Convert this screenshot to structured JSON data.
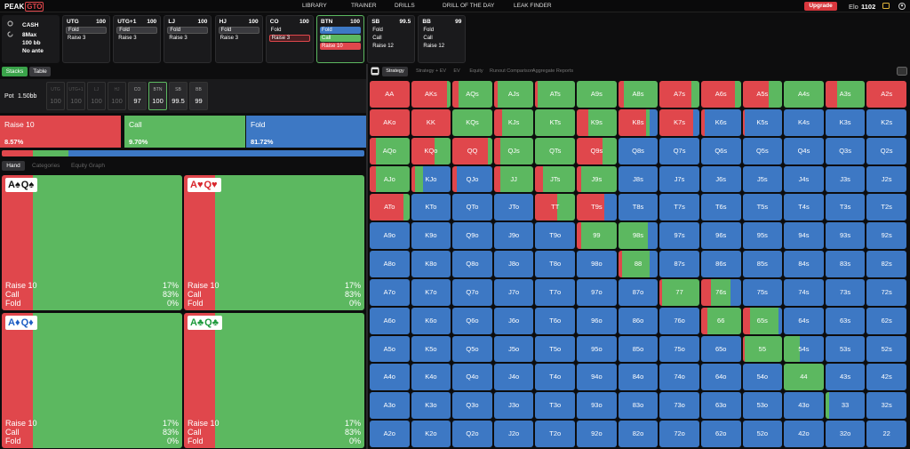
{
  "nav": {
    "logo": [
      "PEAK",
      "GTO"
    ],
    "items": [
      "LIBRARY",
      "TRAINER",
      "DRILLS",
      "DRILL OF THE DAY",
      "LEAK FINDER"
    ],
    "upgrade": "Upgrade",
    "elo_label": "Elo",
    "elo": 1102
  },
  "settings": [
    "CASH",
    "8Max",
    "100 bb",
    "No ante"
  ],
  "positions": [
    {
      "name": "UTG",
      "stack": 100,
      "actions": [
        "Fold",
        "Raise 3"
      ],
      "selected": 0
    },
    {
      "name": "UTG+1",
      "stack": 100,
      "actions": [
        "Fold",
        "Raise 3"
      ],
      "selected": 0
    },
    {
      "name": "LJ",
      "stack": 100,
      "actions": [
        "Fold",
        "Raise 3"
      ],
      "selected": 0
    },
    {
      "name": "HJ",
      "stack": 100,
      "actions": [
        "Fold",
        "Raise 3"
      ],
      "selected": 0
    },
    {
      "name": "CO",
      "stack": 100,
      "actions": [
        "Fold",
        "Raise 3"
      ],
      "selected": 1
    },
    {
      "name": "BTN",
      "stack": 100,
      "actions": [
        "Fold",
        "Call",
        "Raise 10"
      ],
      "chip_colors": [
        "#3d78c4",
        "#5cb860",
        "#e0474c"
      ]
    },
    {
      "name": "SB",
      "stack": 99.5,
      "actions": [
        "Fold",
        "Call",
        "Raise 12"
      ]
    },
    {
      "name": "BB",
      "stack": 99,
      "actions": [
        "Fold",
        "Call",
        "Raise 12"
      ]
    }
  ],
  "view_tabs": {
    "items": [
      "Stacks",
      "Table"
    ],
    "active": 0
  },
  "pot": {
    "label": "Pot",
    "value": "1.50bb"
  },
  "seats": [
    {
      "name": "UTG",
      "stack": 100,
      "folded": true
    },
    {
      "name": "UTG+1",
      "stack": 100,
      "folded": true
    },
    {
      "name": "LJ",
      "stack": 100,
      "folded": true
    },
    {
      "name": "HJ",
      "stack": 100,
      "folded": true
    },
    {
      "name": "CO",
      "stack": 97
    },
    {
      "name": "BTN",
      "stack": 100,
      "active": true
    },
    {
      "name": "SB",
      "stack": 99.5
    },
    {
      "name": "BB",
      "stack": 99
    }
  ],
  "actions": [
    {
      "name": "Raise 10",
      "freq": 8.57,
      "freq_label": "8.57%",
      "color": "#e0474c"
    },
    {
      "name": "Call",
      "freq": 9.7,
      "freq_label": "9.70%",
      "color": "#5cb860"
    },
    {
      "name": "Fold",
      "freq": 81.72,
      "freq_label": "81.72%",
      "color": "#3d78c4"
    }
  ],
  "detail_tabs": {
    "items": [
      "Hand",
      "Categories",
      "Equity Graph"
    ],
    "active": 0
  },
  "combos": [
    {
      "cards": [
        {
          "rank": "A",
          "suit": "♠",
          "color": "#111111"
        },
        {
          "rank": "Q",
          "suit": "♠",
          "color": "#111111"
        }
      ],
      "freqs": [
        17,
        83,
        0
      ],
      "labels": [
        "17%",
        "83%",
        "0%"
      ]
    },
    {
      "cards": [
        {
          "rank": "A",
          "suit": "♥",
          "color": "#d9262c"
        },
        {
          "rank": "Q",
          "suit": "♥",
          "color": "#d9262c"
        }
      ],
      "freqs": [
        17,
        83,
        0
      ],
      "labels": [
        "17%",
        "83%",
        "0%"
      ]
    },
    {
      "cards": [
        {
          "rank": "A",
          "suit": "♦",
          "color": "#1f5fc4"
        },
        {
          "rank": "Q",
          "suit": "♦",
          "color": "#1f5fc4"
        }
      ],
      "freqs": [
        17,
        83,
        0
      ],
      "labels": [
        "17%",
        "83%",
        "0%"
      ]
    },
    {
      "cards": [
        {
          "rank": "A",
          "suit": "♣",
          "color": "#1e9a3c"
        },
        {
          "rank": "Q",
          "suit": "♣",
          "color": "#1e9a3c"
        }
      ],
      "freqs": [
        17,
        83,
        0
      ],
      "labels": [
        "17%",
        "83%",
        "0%"
      ]
    }
  ],
  "strategy_tabs": {
    "items": [
      "Strategy",
      "Strategy + EV",
      "EV",
      "Equity",
      "Runout Comparison",
      "Aggregate Reports"
    ],
    "active": 0
  },
  "grid": {
    "hands": [
      [
        "AA",
        "AKs",
        "AQs",
        "AJs",
        "ATs",
        "A9s",
        "A8s",
        "A7s",
        "A6s",
        "A5s",
        "A4s",
        "A3s",
        "A2s"
      ],
      [
        "AKo",
        "KK",
        "KQs",
        "KJs",
        "KTs",
        "K9s",
        "K8s",
        "K7s",
        "K6s",
        "K5s",
        "K4s",
        "K3s",
        "K2s"
      ],
      [
        "AQo",
        "KQo",
        "QQ",
        "QJs",
        "QTs",
        "Q9s",
        "Q8s",
        "Q7s",
        "Q6s",
        "Q5s",
        "Q4s",
        "Q3s",
        "Q2s"
      ],
      [
        "AJo",
        "KJo",
        "QJo",
        "JJ",
        "JTs",
        "J9s",
        "J8s",
        "J7s",
        "J6s",
        "J5s",
        "J4s",
        "J3s",
        "J2s"
      ],
      [
        "ATo",
        "KTo",
        "QTo",
        "JTo",
        "TT",
        "T9s",
        "T8s",
        "T7s",
        "T6s",
        "T5s",
        "T4s",
        "T3s",
        "T2s"
      ],
      [
        "A9o",
        "K9o",
        "Q9o",
        "J9o",
        "T9o",
        "99",
        "98s",
        "97s",
        "96s",
        "95s",
        "94s",
        "93s",
        "92s"
      ],
      [
        "A8o",
        "K8o",
        "Q8o",
        "J8o",
        "T8o",
        "98o",
        "88",
        "87s",
        "86s",
        "85s",
        "84s",
        "83s",
        "82s"
      ],
      [
        "A7o",
        "K7o",
        "Q7o",
        "J7o",
        "T7o",
        "97o",
        "87o",
        "77",
        "76s",
        "75s",
        "74s",
        "73s",
        "72s"
      ],
      [
        "A6o",
        "K6o",
        "Q6o",
        "J6o",
        "T6o",
        "96o",
        "86o",
        "76o",
        "66",
        "65s",
        "64s",
        "63s",
        "62s"
      ],
      [
        "A5o",
        "K5o",
        "Q5o",
        "J5o",
        "T5o",
        "95o",
        "85o",
        "75o",
        "65o",
        "55",
        "54s",
        "53s",
        "52s"
      ],
      [
        "A4o",
        "K4o",
        "Q4o",
        "J4o",
        "T4o",
        "94o",
        "84o",
        "74o",
        "64o",
        "54o",
        "44",
        "43s",
        "42s"
      ],
      [
        "A3o",
        "K3o",
        "Q3o",
        "J3o",
        "T3o",
        "93o",
        "83o",
        "73o",
        "63o",
        "53o",
        "43o",
        "33",
        "32s"
      ],
      [
        "A2o",
        "K2o",
        "Q2o",
        "J2o",
        "T2o",
        "92o",
        "82o",
        "72o",
        "62o",
        "52o",
        "42o",
        "32o",
        "22"
      ]
    ],
    "mix": [
      [
        [
          100,
          0,
          0
        ],
        [
          90,
          10,
          0
        ],
        [
          15,
          85,
          0
        ],
        [
          10,
          90,
          0
        ],
        [
          5,
          95,
          0
        ],
        [
          0,
          100,
          0
        ],
        [
          15,
          85,
          0
        ],
        [
          80,
          20,
          0
        ],
        [
          85,
          15,
          0
        ],
        [
          65,
          35,
          0
        ],
        [
          0,
          100,
          0
        ],
        [
          30,
          70,
          0
        ],
        [
          100,
          0,
          0
        ]
      ],
      [
        [
          100,
          0,
          0
        ],
        [
          100,
          0,
          0
        ],
        [
          0,
          100,
          0
        ],
        [
          20,
          80,
          0
        ],
        [
          0,
          100,
          0
        ],
        [
          30,
          70,
          0
        ],
        [
          70,
          10,
          20
        ],
        [
          85,
          0,
          15
        ],
        [
          10,
          0,
          90
        ],
        [
          5,
          0,
          95
        ],
        [
          0,
          0,
          100
        ],
        [
          0,
          0,
          100
        ],
        [
          0,
          0,
          100
        ]
      ],
      [
        [
          15,
          85,
          0
        ],
        [
          60,
          40,
          0
        ],
        [
          90,
          10,
          0
        ],
        [
          15,
          85,
          0
        ],
        [
          0,
          100,
          0
        ],
        [
          65,
          35,
          0
        ],
        [
          0,
          0,
          100
        ],
        [
          0,
          0,
          100
        ],
        [
          0,
          0,
          100
        ],
        [
          0,
          0,
          100
        ],
        [
          0,
          0,
          100
        ],
        [
          0,
          0,
          100
        ],
        [
          0,
          0,
          100
        ]
      ],
      [
        [
          15,
          85,
          0
        ],
        [
          10,
          20,
          70
        ],
        [
          10,
          0,
          90
        ],
        [
          15,
          85,
          0
        ],
        [
          20,
          80,
          0
        ],
        [
          10,
          90,
          0
        ],
        [
          0,
          0,
          100
        ],
        [
          0,
          0,
          100
        ],
        [
          0,
          0,
          100
        ],
        [
          0,
          0,
          100
        ],
        [
          0,
          0,
          100
        ],
        [
          0,
          0,
          100
        ],
        [
          0,
          0,
          100
        ]
      ],
      [
        [
          85,
          15,
          0
        ],
        [
          0,
          0,
          100
        ],
        [
          0,
          0,
          100
        ],
        [
          0,
          0,
          100
        ],
        [
          55,
          45,
          0
        ],
        [
          70,
          0,
          30
        ],
        [
          0,
          0,
          100
        ],
        [
          0,
          0,
          100
        ],
        [
          0,
          0,
          100
        ],
        [
          0,
          0,
          100
        ],
        [
          0,
          0,
          100
        ],
        [
          0,
          0,
          100
        ],
        [
          0,
          0,
          100
        ]
      ],
      [
        [
          0,
          0,
          100
        ],
        [
          0,
          0,
          100
        ],
        [
          0,
          0,
          100
        ],
        [
          0,
          0,
          100
        ],
        [
          0,
          0,
          100
        ],
        [
          10,
          90,
          0
        ],
        [
          0,
          75,
          25
        ],
        [
          0,
          0,
          100
        ],
        [
          0,
          0,
          100
        ],
        [
          0,
          0,
          100
        ],
        [
          0,
          0,
          100
        ],
        [
          0,
          0,
          100
        ],
        [
          0,
          0,
          100
        ]
      ],
      [
        [
          0,
          0,
          100
        ],
        [
          0,
          0,
          100
        ],
        [
          0,
          0,
          100
        ],
        [
          0,
          0,
          100
        ],
        [
          0,
          0,
          100
        ],
        [
          0,
          0,
          100
        ],
        [
          10,
          70,
          20
        ],
        [
          0,
          0,
          100
        ],
        [
          0,
          0,
          100
        ],
        [
          0,
          0,
          100
        ],
        [
          0,
          0,
          100
        ],
        [
          0,
          0,
          100
        ],
        [
          0,
          0,
          100
        ]
      ],
      [
        [
          0,
          0,
          100
        ],
        [
          0,
          0,
          100
        ],
        [
          0,
          0,
          100
        ],
        [
          0,
          0,
          100
        ],
        [
          0,
          0,
          100
        ],
        [
          0,
          0,
          100
        ],
        [
          0,
          0,
          100
        ],
        [
          5,
          95,
          0
        ],
        [
          25,
          50,
          25
        ],
        [
          0,
          0,
          100
        ],
        [
          0,
          0,
          100
        ],
        [
          0,
          0,
          100
        ],
        [
          0,
          0,
          100
        ]
      ],
      [
        [
          0,
          0,
          100
        ],
        [
          0,
          0,
          100
        ],
        [
          0,
          0,
          100
        ],
        [
          0,
          0,
          100
        ],
        [
          0,
          0,
          100
        ],
        [
          0,
          0,
          100
        ],
        [
          0,
          0,
          100
        ],
        [
          0,
          0,
          100
        ],
        [
          15,
          85,
          0
        ],
        [
          20,
          70,
          10
        ],
        [
          0,
          0,
          100
        ],
        [
          0,
          0,
          100
        ],
        [
          0,
          0,
          100
        ]
      ],
      [
        [
          0,
          0,
          100
        ],
        [
          0,
          0,
          100
        ],
        [
          0,
          0,
          100
        ],
        [
          0,
          0,
          100
        ],
        [
          0,
          0,
          100
        ],
        [
          0,
          0,
          100
        ],
        [
          0,
          0,
          100
        ],
        [
          0,
          0,
          100
        ],
        [
          0,
          0,
          100
        ],
        [
          5,
          95,
          0
        ],
        [
          0,
          40,
          60
        ],
        [
          0,
          0,
          100
        ],
        [
          0,
          0,
          100
        ]
      ],
      [
        [
          0,
          0,
          100
        ],
        [
          0,
          0,
          100
        ],
        [
          0,
          0,
          100
        ],
        [
          0,
          0,
          100
        ],
        [
          0,
          0,
          100
        ],
        [
          0,
          0,
          100
        ],
        [
          0,
          0,
          100
        ],
        [
          0,
          0,
          100
        ],
        [
          0,
          0,
          100
        ],
        [
          0,
          0,
          100
        ],
        [
          0,
          100,
          0
        ],
        [
          0,
          0,
          100
        ],
        [
          0,
          0,
          100
        ]
      ],
      [
        [
          0,
          0,
          100
        ],
        [
          0,
          0,
          100
        ],
        [
          0,
          0,
          100
        ],
        [
          0,
          0,
          100
        ],
        [
          0,
          0,
          100
        ],
        [
          0,
          0,
          100
        ],
        [
          0,
          0,
          100
        ],
        [
          0,
          0,
          100
        ],
        [
          0,
          0,
          100
        ],
        [
          0,
          0,
          100
        ],
        [
          0,
          0,
          100
        ],
        [
          0,
          10,
          90
        ],
        [
          0,
          0,
          100
        ]
      ],
      [
        [
          0,
          0,
          100
        ],
        [
          0,
          0,
          100
        ],
        [
          0,
          0,
          100
        ],
        [
          0,
          0,
          100
        ],
        [
          0,
          0,
          100
        ],
        [
          0,
          0,
          100
        ],
        [
          0,
          0,
          100
        ],
        [
          0,
          0,
          100
        ],
        [
          0,
          0,
          100
        ],
        [
          0,
          0,
          100
        ],
        [
          0,
          0,
          100
        ],
        [
          0,
          0,
          100
        ],
        [
          0,
          0,
          100
        ]
      ]
    ]
  }
}
